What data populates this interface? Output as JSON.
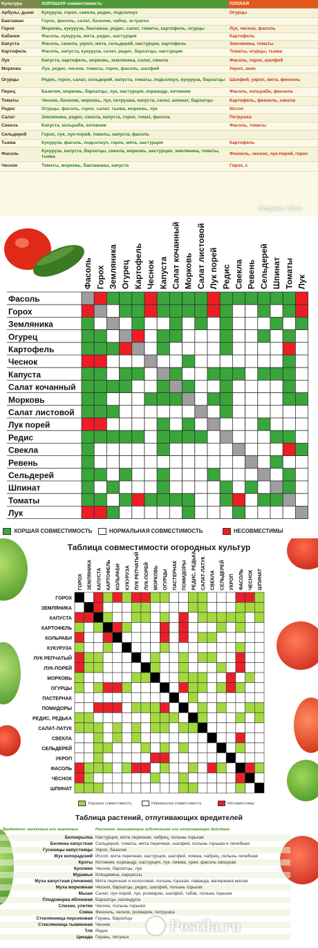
{
  "sheet1": {
    "headers": [
      "Культура",
      "ХОРОШАЯ совместимость",
      "ПЛОХАЯ"
    ],
    "rows": [
      [
        "Арбузы, дыни",
        "Кукуруза, горох, свекла, редис, подсолнух",
        "Огурцы"
      ],
      [
        "Баклажан",
        "Горох, фасоль, салат, базилик, чабер, эстрагон",
        ""
      ],
      [
        "Горох",
        "Морковь, кукуруза, баклажан, редис, салат, томаты, картофель, огурцы",
        "Лук, чеснок, фасоль"
      ],
      [
        "Кабачки",
        "Фасоль, кукуруза, мята, редис, настурция",
        "Картофель"
      ],
      [
        "Капуста",
        "Фасоль, свекла, укроп, мята, сельдерей, настурция, картофель",
        "Земляника, томаты"
      ],
      [
        "Картофель",
        "Фасоль, капуста, кукуруза, салат, редис, бархатцы, настурция",
        "Томаты, огурцы, тыква"
      ],
      [
        "Лук",
        "Капуста, картофель, морковь, земляника, салат, свекла",
        "Фасоль, горох, шалфей"
      ],
      [
        "Морковь",
        "Лук, редис, чеснок, томаты, горох, фасоль, шалфей",
        "Укроп, анис"
      ],
      [
        "Огурцы",
        "Редис, горох, салат, сельдерей, капуста, томаты, подсолнух, кукуруза, бархатцы",
        "Шалфей, укроп, мята, фенхель"
      ],
      [
        "Перец",
        "Базилик, морковь, бархатцы, лук, настурция, кориандр, котовник",
        "Фасоль, кольраби, фенхель"
      ],
      [
        "Томаты",
        "Чеснок, базилик, морковь, лук, петрушка, капуста, салат, шпинат, бархатцы",
        "Картофель, фенхель, свекла"
      ],
      [
        "Редис",
        "Огурцы, фасоль, горох, салат, тыква, морковь, лук",
        "Иссоп"
      ],
      [
        "Салат",
        "Земляника, редис, свекла, капуста, горох, томат, фасоль",
        "Петрушка"
      ],
      [
        "Свекла",
        "Капуста, кольраби, котовник",
        "Фасоль, томаты"
      ],
      [
        "Сельдерей",
        "Горох, лук, лук-порей, томаты, капуста, фасоль",
        ""
      ],
      [
        "Тыква",
        "Кукуруза, фасоль, подсолнух, горох, мята, настурция",
        "Картофель"
      ],
      [
        "Фасоль",
        "Кукуруза, капуста, бархатцы, свекла, морковь, настурция, земляника, томаты, тыква",
        "Фенхель, чеснок, лук-порей, горох"
      ],
      [
        "Чеснок",
        "Томаты, морковь, баклажаны, капуста",
        "Горох, с"
      ]
    ],
    "watermark": "Страна Мам"
  },
  "grid2": {
    "crops": [
      "Фасоль",
      "Горох",
      "Земляника",
      "Огурец",
      "Картофель",
      "Чеснок",
      "Капуста",
      "Салат кочанный",
      "Морковь",
      "Салат листовой",
      "Лук порей",
      "Редис",
      "Свекла",
      "Ревень",
      "Сельдерей",
      "Шпинат",
      "Томаты",
      "Лук"
    ],
    "matrix": [
      "-RGGGRGGGGRGGGGGGR",
      "R-NGGRGGGGRGNNGNGR",
      "GN-NGNNGNGNGNNNGNG",
      "GGN-RNGGNNNGNNGNGN",
      "GGGR-NGNNNNGNNNNRN",
      "RRNNN-NNGNNNNNNNGN",
      "GGNGGN-GNNGGGNGGGN",
      "GGGGNNG-GNNGNNNNGN",
      "GGNNNGGG-NGGNNNNGG",
      "GGGNNNNNN-NGNNNNNN",
      "RRNNNNGNGN-NNNGNNN",
      "GGGGGNGGGGN-NNNGGN",
      "GNNNNNGNNNNN-NNNRG",
      "GNNNNNNNNNNNN-NGNN",
      "GGNGNNGNNNGNNN-NGN",
      "GNGNNNGNNNNGNGN-GN",
      "GGNGRGGGGNNGRNGG-N",
      "RRGNNNNNGNNNGNNNN-"
    ],
    "legend": [
      "ХОРШАЯ СОВМЕСТИМОСТЬ",
      "НОРМАЛЬНАЯ СОВМЕСТИМОСТЬ",
      "НЕСОВМЕСТИМЫ"
    ],
    "colors": {
      "good": "#3aa53a",
      "normal": "#ffffff",
      "bad": "#ee1c25",
      "diag": "#9e9e9e"
    }
  },
  "grid3": {
    "title": "Таблица совместимости огородных культур",
    "crops": [
      "ГОРОХ",
      "ЗЕМЛЯНИКА",
      "КАПУСТА",
      "КАРТОФЕЛЬ",
      "КОЛЬРАБИ",
      "КУКУРУЗА",
      "ЛУК РЕПЧАТЫЙ",
      "ЛУК-ПОРЕЙ",
      "МОРКОВЬ",
      "ОГУРЦЫ",
      "ПАСТЕРНАК",
      "ПОМИДОРЫ",
      "РЕДИС, РЕДЬКА",
      "САЛАТ-ЛАТУК",
      "СВЕКЛА",
      "СЕЛЬДЕРЕЙ",
      "УКРОП",
      "ФАСОЛЬ",
      "ЧЕСНОК",
      "ШПИНАТ"
    ],
    "matrix": [
      "-NRGRGRRGGNNGGNNNRRG",
      "N-RNNNGGNNNNGGNNNGGG",
      "RR-GNNGGNGNRNGGGGGNG",
      "GNG-RGNNNRNRNNNGNGNN",
      "RNNR-NNNNRNRNGGNNNNN",
      "GNNGN-NNNGNNNNNNNGNN",
      "RGGNNN-NGNNGNGGNNRNN",
      "RGGNNNN-GNNGNNNGNRNN",
      "GNNNNNGG-NNGGGNNRNGN",
      "GNGRRGNNN-NRGGNGRGNN",
      "NNNNNNNNNN-NGNNNNNNN",
      "NNRRRNGGGRN-NGNGNNGG",
      "GGNNNNNNGGGN-GNNNGNG",
      "GGGNGNGNGGNGG-NNNNNN",
      "NNGNGNGNNNNNNN-NNRNN",
      "NNGGNNNGNGNGNNN-NGNN",
      "NNGNNNNNRRNNNNNN-NNN",
      "RGGGNGRRNGNNGNRGN-RG",
      "RGNNNNNNGNNGNNNNNR-N",
      "GGGNNNNNNNNGGNNNNGN-"
    ],
    "legend": [
      "Хорошая совместимость",
      "Нормальная совместимость",
      "Несовместимы"
    ],
    "colors": {
      "good": "#a3d93f",
      "normal": "#ffffff",
      "bad": "#e8202a",
      "diag": "#000000"
    }
  },
  "pests": {
    "title": "Таблица растений, отпугивающих вредителей",
    "col_a": "Вредители: насекомые или животные",
    "col_b": "Растения, оказывающие губительное или отпугивающее действие",
    "rows": [
      [
        "Белокрылка",
        "Настурция, мята перечная, чабрец, полынь горькая"
      ],
      [
        "Белянка капустная",
        "Сельдерей, томаты, мята перечная, шалфей, полынь горькая и лечебная"
      ],
      [
        "Гусеницы капустницы",
        "Укроп, базилик"
      ],
      [
        "Жук колорадский",
        "Иссоп, мята перечная, настурция, шалфей, пижма, чабрец, полынь лечебная"
      ],
      [
        "Кроты",
        "Котовник, кориандр, настурция, лук, пижма, хрен, фасоль овощная"
      ],
      [
        "Кролики",
        "Чеснок, бархатцы, лук"
      ],
      [
        "Муравьи",
        "Клещевина, нарциссы"
      ],
      [
        "Муха капустная (личинки)",
        "Мята перечная и колосовая, полынь горькая, лаванда, валериана малая"
      ],
      [
        "Муха морковная",
        "Чеснок, бархатцы, редис, шалфей, полынь горькая"
      ],
      [
        "Мыши",
        "Салат, лук-порей, лук, розмарин, шалфей, табак, полынь горькая"
      ],
      [
        "Плодожорка яблонная",
        "Бархатцы, календула"
      ],
      [
        "Слизни, улитки",
        "Чеснок, полынь горькая"
      ],
      [
        "Совка",
        "Фенхель, чеснок, розмарин, петрушка"
      ],
      [
        "Стеклянница персиковая",
        "Герань, бархатцы"
      ],
      [
        "Стеклянница тыквенная",
        "Чеснок"
      ],
      [
        "Тля",
        "Редис"
      ],
      [
        "Цикада",
        "Герань, петунья"
      ]
    ],
    "watermark": "Postila.ru"
  }
}
